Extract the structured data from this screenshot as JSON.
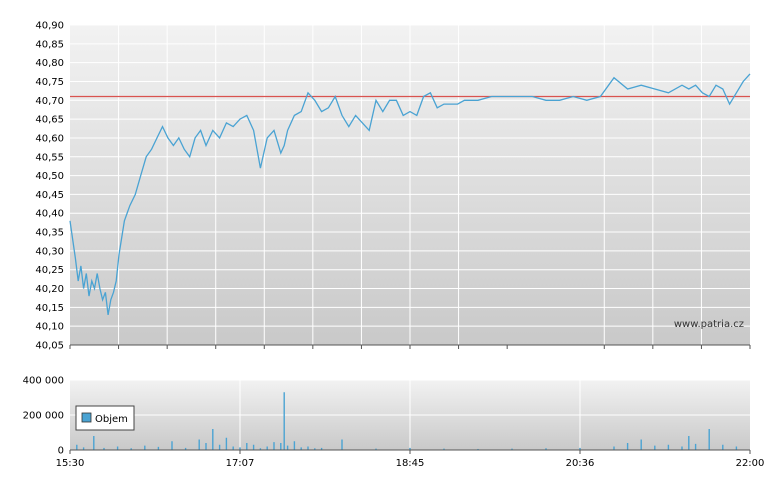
{
  "chart_data": [
    {
      "type": "line",
      "title": "",
      "xlabel": "",
      "ylabel": "",
      "ylim": [
        40.05,
        40.9
      ],
      "yticks": [
        "40,90",
        "40,85",
        "40,80",
        "40,75",
        "40,70",
        "40,65",
        "40,60",
        "40,55",
        "40,50",
        "40,45",
        "40,40",
        "40,35",
        "40,30",
        "40,25",
        "40,20",
        "40,15",
        "40,10",
        "40,05"
      ],
      "reference_line": {
        "value": 40.71,
        "color": "#d9534f"
      },
      "watermark": "www.patria.cz",
      "series": [
        {
          "color": "#4aa3d3",
          "x": [
            0,
            0.004,
            0.008,
            0.012,
            0.016,
            0.02,
            0.024,
            0.028,
            0.032,
            0.036,
            0.04,
            0.044,
            0.048,
            0.052,
            0.056,
            0.06,
            0.064,
            0.068,
            0.072,
            0.08,
            0.088,
            0.096,
            0.104,
            0.112,
            0.12,
            0.128,
            0.136,
            0.144,
            0.152,
            0.16,
            0.168,
            0.176,
            0.184,
            0.192,
            0.2,
            0.21,
            0.22,
            0.23,
            0.24,
            0.25,
            0.26,
            0.27,
            0.28,
            0.29,
            0.3,
            0.31,
            0.315,
            0.32,
            0.33,
            0.34,
            0.35,
            0.36,
            0.37,
            0.38,
            0.39,
            0.4,
            0.41,
            0.42,
            0.43,
            0.44,
            0.45,
            0.46,
            0.47,
            0.48,
            0.49,
            0.5,
            0.51,
            0.52,
            0.53,
            0.54,
            0.55,
            0.56,
            0.57,
            0.58,
            0.59,
            0.6,
            0.62,
            0.64,
            0.66,
            0.68,
            0.7,
            0.72,
            0.74,
            0.76,
            0.78,
            0.8,
            0.82,
            0.84,
            0.86,
            0.88,
            0.9,
            0.91,
            0.92,
            0.93,
            0.94,
            0.95,
            0.96,
            0.97,
            0.98,
            0.99,
            1.0
          ],
          "values": [
            40.38,
            40.33,
            40.28,
            40.22,
            40.26,
            40.2,
            40.24,
            40.18,
            40.22,
            40.2,
            40.24,
            40.2,
            40.17,
            40.19,
            40.13,
            40.17,
            40.19,
            40.22,
            40.29,
            40.38,
            40.42,
            40.45,
            40.5,
            40.55,
            40.57,
            40.6,
            40.63,
            40.6,
            40.58,
            40.6,
            40.57,
            40.55,
            40.6,
            40.62,
            40.58,
            40.62,
            40.6,
            40.64,
            40.63,
            40.65,
            40.66,
            40.62,
            40.52,
            40.6,
            40.62,
            40.56,
            40.58,
            40.62,
            40.66,
            40.67,
            40.72,
            40.7,
            40.67,
            40.68,
            40.71,
            40.66,
            40.63,
            40.66,
            40.64,
            40.62,
            40.7,
            40.67,
            40.7,
            40.7,
            40.66,
            40.67,
            40.66,
            40.71,
            40.72,
            40.68,
            40.69,
            40.69,
            40.69,
            40.7,
            40.7,
            40.7,
            40.71,
            40.71,
            40.71,
            40.71,
            40.7,
            40.7,
            40.71,
            40.7,
            40.71,
            40.76,
            40.73,
            40.74,
            40.73,
            40.72,
            40.74,
            40.73,
            40.74,
            40.72,
            40.71,
            40.74,
            40.73,
            40.69,
            40.72,
            40.75,
            40.77
          ]
        }
      ]
    },
    {
      "type": "bar",
      "title": "",
      "xlabel": "",
      "ylabel": "",
      "ylim": [
        0,
        400000
      ],
      "yticks": [
        "400 000",
        "200 000",
        "0"
      ],
      "xticks": [
        "15:30",
        "17:07",
        "18:45",
        "20:36",
        "22:00"
      ],
      "legend": {
        "label": "Objem",
        "color": "#4aa3d3",
        "placement": "top-left"
      },
      "series": [
        {
          "name": "Objem",
          "x": [
            0.01,
            0.02,
            0.035,
            0.05,
            0.07,
            0.09,
            0.11,
            0.13,
            0.15,
            0.17,
            0.19,
            0.2,
            0.21,
            0.22,
            0.23,
            0.24,
            0.25,
            0.26,
            0.27,
            0.28,
            0.29,
            0.3,
            0.31,
            0.315,
            0.32,
            0.33,
            0.34,
            0.35,
            0.36,
            0.37,
            0.4,
            0.45,
            0.5,
            0.55,
            0.6,
            0.65,
            0.7,
            0.75,
            0.8,
            0.82,
            0.84,
            0.86,
            0.88,
            0.9,
            0.91,
            0.92,
            0.94,
            0.96,
            0.98
          ],
          "values": [
            30000,
            15000,
            80000,
            12000,
            20000,
            10000,
            25000,
            18000,
            50000,
            12000,
            60000,
            40000,
            120000,
            30000,
            70000,
            20000,
            15000,
            40000,
            30000,
            10000,
            20000,
            45000,
            40000,
            330000,
            25000,
            50000,
            15000,
            20000,
            10000,
            12000,
            60000,
            8000,
            12000,
            8000,
            6000,
            8000,
            10000,
            12000,
            20000,
            40000,
            60000,
            25000,
            30000,
            20000,
            80000,
            35000,
            120000,
            30000,
            20000
          ]
        }
      ]
    }
  ]
}
